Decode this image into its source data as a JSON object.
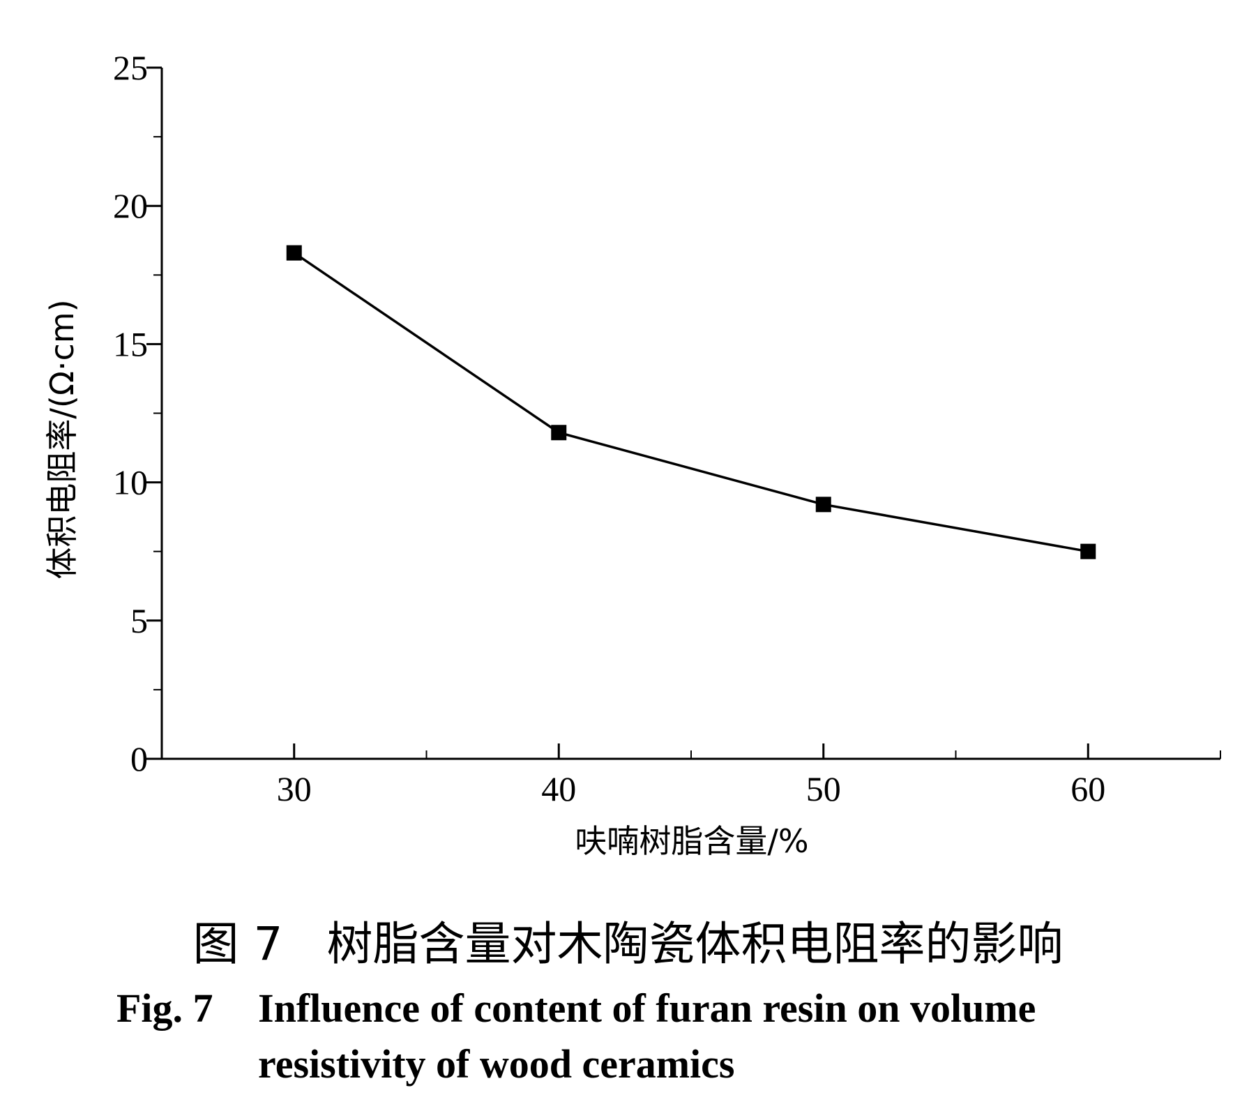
{
  "chart_data": {
    "type": "line",
    "xlabel": "呋喃树脂含量/%",
    "ylabel": "体积电阻率/(Ω·cm)",
    "xlim": [
      25,
      65
    ],
    "ylim": [
      0,
      25
    ],
    "x_ticks": [
      30,
      40,
      50,
      60
    ],
    "y_ticks": [
      0,
      5,
      10,
      15,
      20,
      25
    ],
    "x_tick_labels": [
      "30",
      "40",
      "50",
      "60"
    ],
    "y_tick_labels": [
      "0",
      "5",
      "10",
      "15",
      "20",
      "25"
    ],
    "series": [
      {
        "x": [
          30,
          40,
          50,
          60
        ],
        "y": [
          18.3,
          11.8,
          9.2,
          7.5
        ],
        "marker": "square",
        "color": "#000000"
      }
    ],
    "grid": false,
    "legend": "none"
  },
  "caption": {
    "chinese": "图 7   树脂含量对木陶瓷体积电阻率的影响",
    "fig_no": "Fig. 7",
    "english_line1": "Influence of content of furan resin on volume",
    "english_line2": "resistivity of wood ceramics"
  }
}
